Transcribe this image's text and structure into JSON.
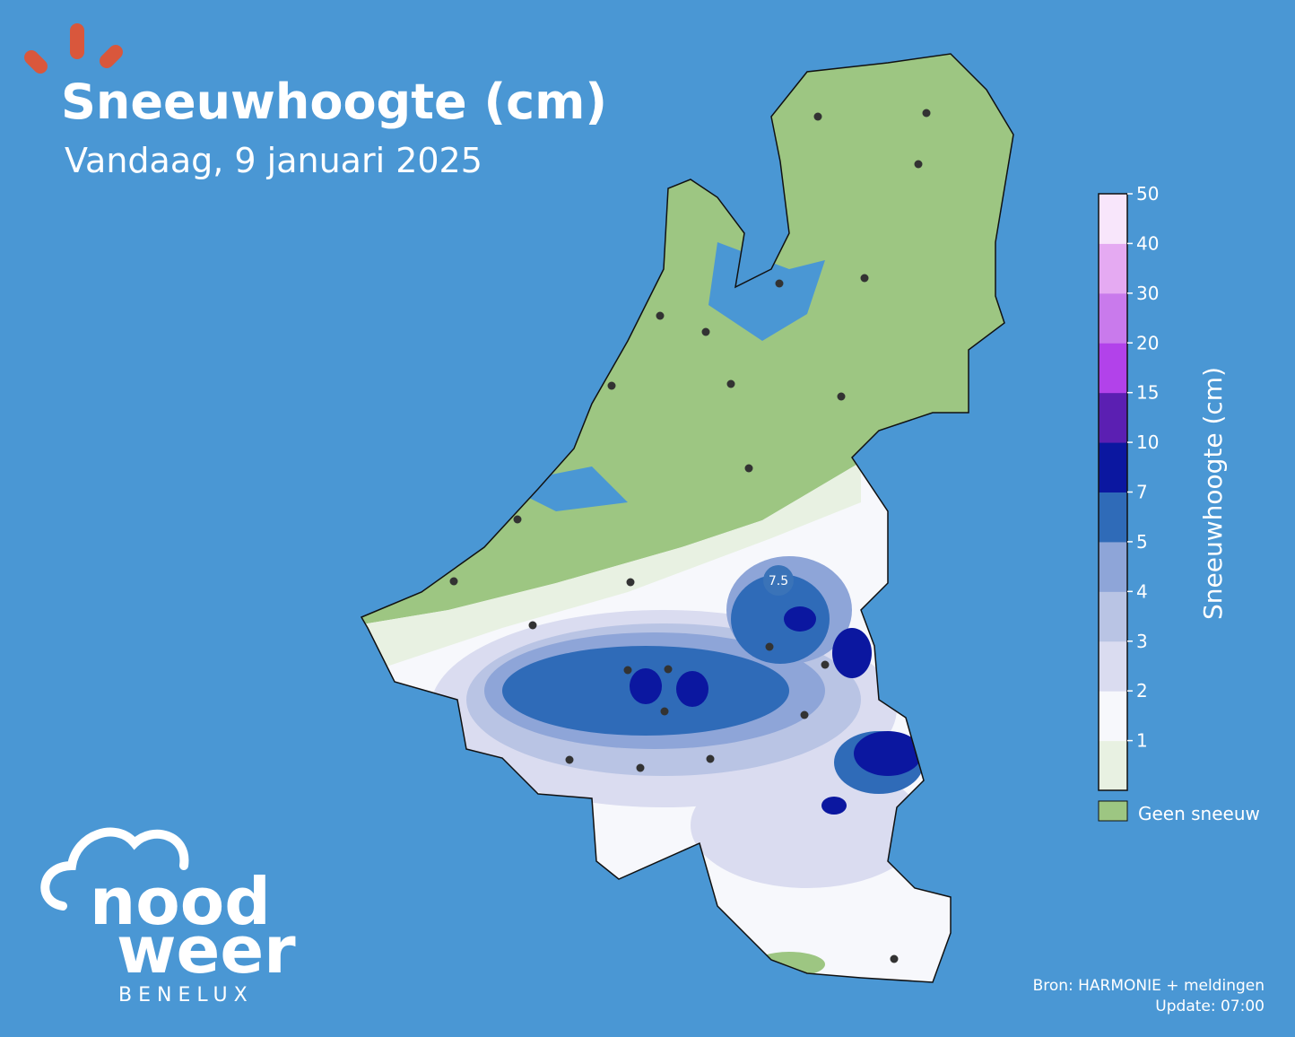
{
  "header": {
    "title": "Sneeuwhoogte (cm)",
    "subtitle": "Vandaag, 9 januari 2025"
  },
  "map": {
    "annotation": "7.5"
  },
  "colorbar": {
    "label": "Sneeuwhoogte (cm)",
    "ticks": [
      1,
      2,
      3,
      4,
      5,
      7,
      10,
      15,
      20,
      30,
      40,
      50
    ],
    "colors": [
      "#e8f1e2",
      "#f7f8fc",
      "#dadcf0",
      "#b9c4e4",
      "#8ea5d8",
      "#2f6bb8",
      "#0b17a0",
      "#5b1fb2",
      "#b242ea",
      "#c97aec",
      "#e5aaf2",
      "#f8e6fb"
    ],
    "no_snow_label": "Geen sneeuw",
    "no_snow_color": "#9dc682"
  },
  "footer": {
    "source": "Bron: HARMONIE + meldingen",
    "update": "Update: 07:00"
  },
  "logo": {
    "line1": "nood",
    "line2": "weer",
    "line3": "BENELUX"
  }
}
